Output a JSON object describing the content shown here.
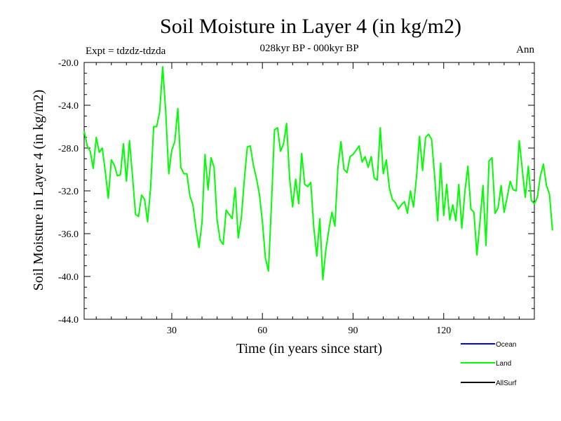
{
  "chart_data": {
    "type": "line",
    "title": "Soil Moisture in Layer 4 (in kg/m2)",
    "subtitle": "028kyr BP - 000kyr BP",
    "expt_label": "Expt = tdzdz-tdzda",
    "season_label": "Ann",
    "xlabel": "Time (in years since start)",
    "ylabel": "Soil Moisture in Layer 4 (in kg/m2)",
    "xlim": [
      1,
      150
    ],
    "ylim": [
      -44,
      -20
    ],
    "x_ticks": [
      30,
      60,
      90,
      120
    ],
    "x_tick_labels": [
      "30",
      "60",
      "90",
      "120"
    ],
    "y_ticks": [
      -44,
      -40,
      -36,
      -32,
      -28,
      -24,
      -20
    ],
    "y_tick_labels": [
      "-44.0",
      "-40.0",
      "-36.0",
      "-32.0",
      "-28.0",
      "-24.0",
      "-20.0"
    ],
    "series": [
      {
        "name": "Land",
        "color": "#00ff00",
        "x_start": 1,
        "x_step": 1,
        "values": [
          -26.4,
          -27.8,
          -28.3,
          -29.9,
          -27.0,
          -28.4,
          -28.0,
          -30.2,
          -32.7,
          -29.1,
          -29.6,
          -30.6,
          -30.5,
          -27.6,
          -31.1,
          -27.3,
          -30.6,
          -34.2,
          -34.4,
          -32.4,
          -32.8,
          -34.9,
          -31.7,
          -26.0,
          -26.0,
          -24.6,
          -20.4,
          -24.6,
          -30.4,
          -28.2,
          -27.4,
          -24.3,
          -29.8,
          -30.4,
          -30.4,
          -32.5,
          -33.3,
          -35.5,
          -37.3,
          -35.0,
          -28.6,
          -31.9,
          -28.9,
          -29.8,
          -34.7,
          -36.6,
          -37.0,
          -33.8,
          -34.2,
          -34.6,
          -31.7,
          -36.4,
          -34.6,
          -31.0,
          -27.9,
          -27.8,
          -29.6,
          -30.8,
          -32.3,
          -34.9,
          -38.3,
          -39.5,
          -33.2,
          -26.3,
          -26.1,
          -28.3,
          -27.6,
          -25.7,
          -30.8,
          -33.5,
          -30.9,
          -33.2,
          -28.5,
          -31.4,
          -31.6,
          -31.2,
          -35.4,
          -38.1,
          -34.6,
          -40.3,
          -37.5,
          -35.6,
          -34.0,
          -35.3,
          -29.8,
          -27.4,
          -30.0,
          -30.3,
          -28.8,
          -28.6,
          -28.2,
          -27.8,
          -29.3,
          -28.8,
          -29.8,
          -28.8,
          -30.8,
          -31.0,
          -26.1,
          -30.4,
          -29.1,
          -31.7,
          -32.8,
          -33.1,
          -33.7,
          -33.3,
          -33.0,
          -34.1,
          -32.0,
          -33.5,
          -30.7,
          -26.9,
          -30.1,
          -27.0,
          -26.7,
          -27.2,
          -30.6,
          -34.8,
          -29.4,
          -34.3,
          -31.4,
          -34.7,
          -33.3,
          -34.8,
          -31.4,
          -35.5,
          -32.1,
          -29.7,
          -33.7,
          -34.0,
          -38.0,
          -34.9,
          -31.5,
          -37.1,
          -29.2,
          -28.9,
          -34.1,
          -33.6,
          -31.5,
          -34.0,
          -32.6,
          -31.1,
          -31.9,
          -32.0,
          -27.3,
          -30.0,
          -32.6,
          -29.7,
          -32.9,
          -33.2,
          -32.6,
          -30.6,
          -29.5,
          -31.5,
          -32.3,
          -35.7
        ]
      }
    ],
    "legend": [
      {
        "label": "Ocean",
        "color": "#0000ff"
      },
      {
        "label": "Land",
        "color": "#00ff00"
      },
      {
        "label": "AllSurf",
        "color": "#000000"
      }
    ]
  }
}
